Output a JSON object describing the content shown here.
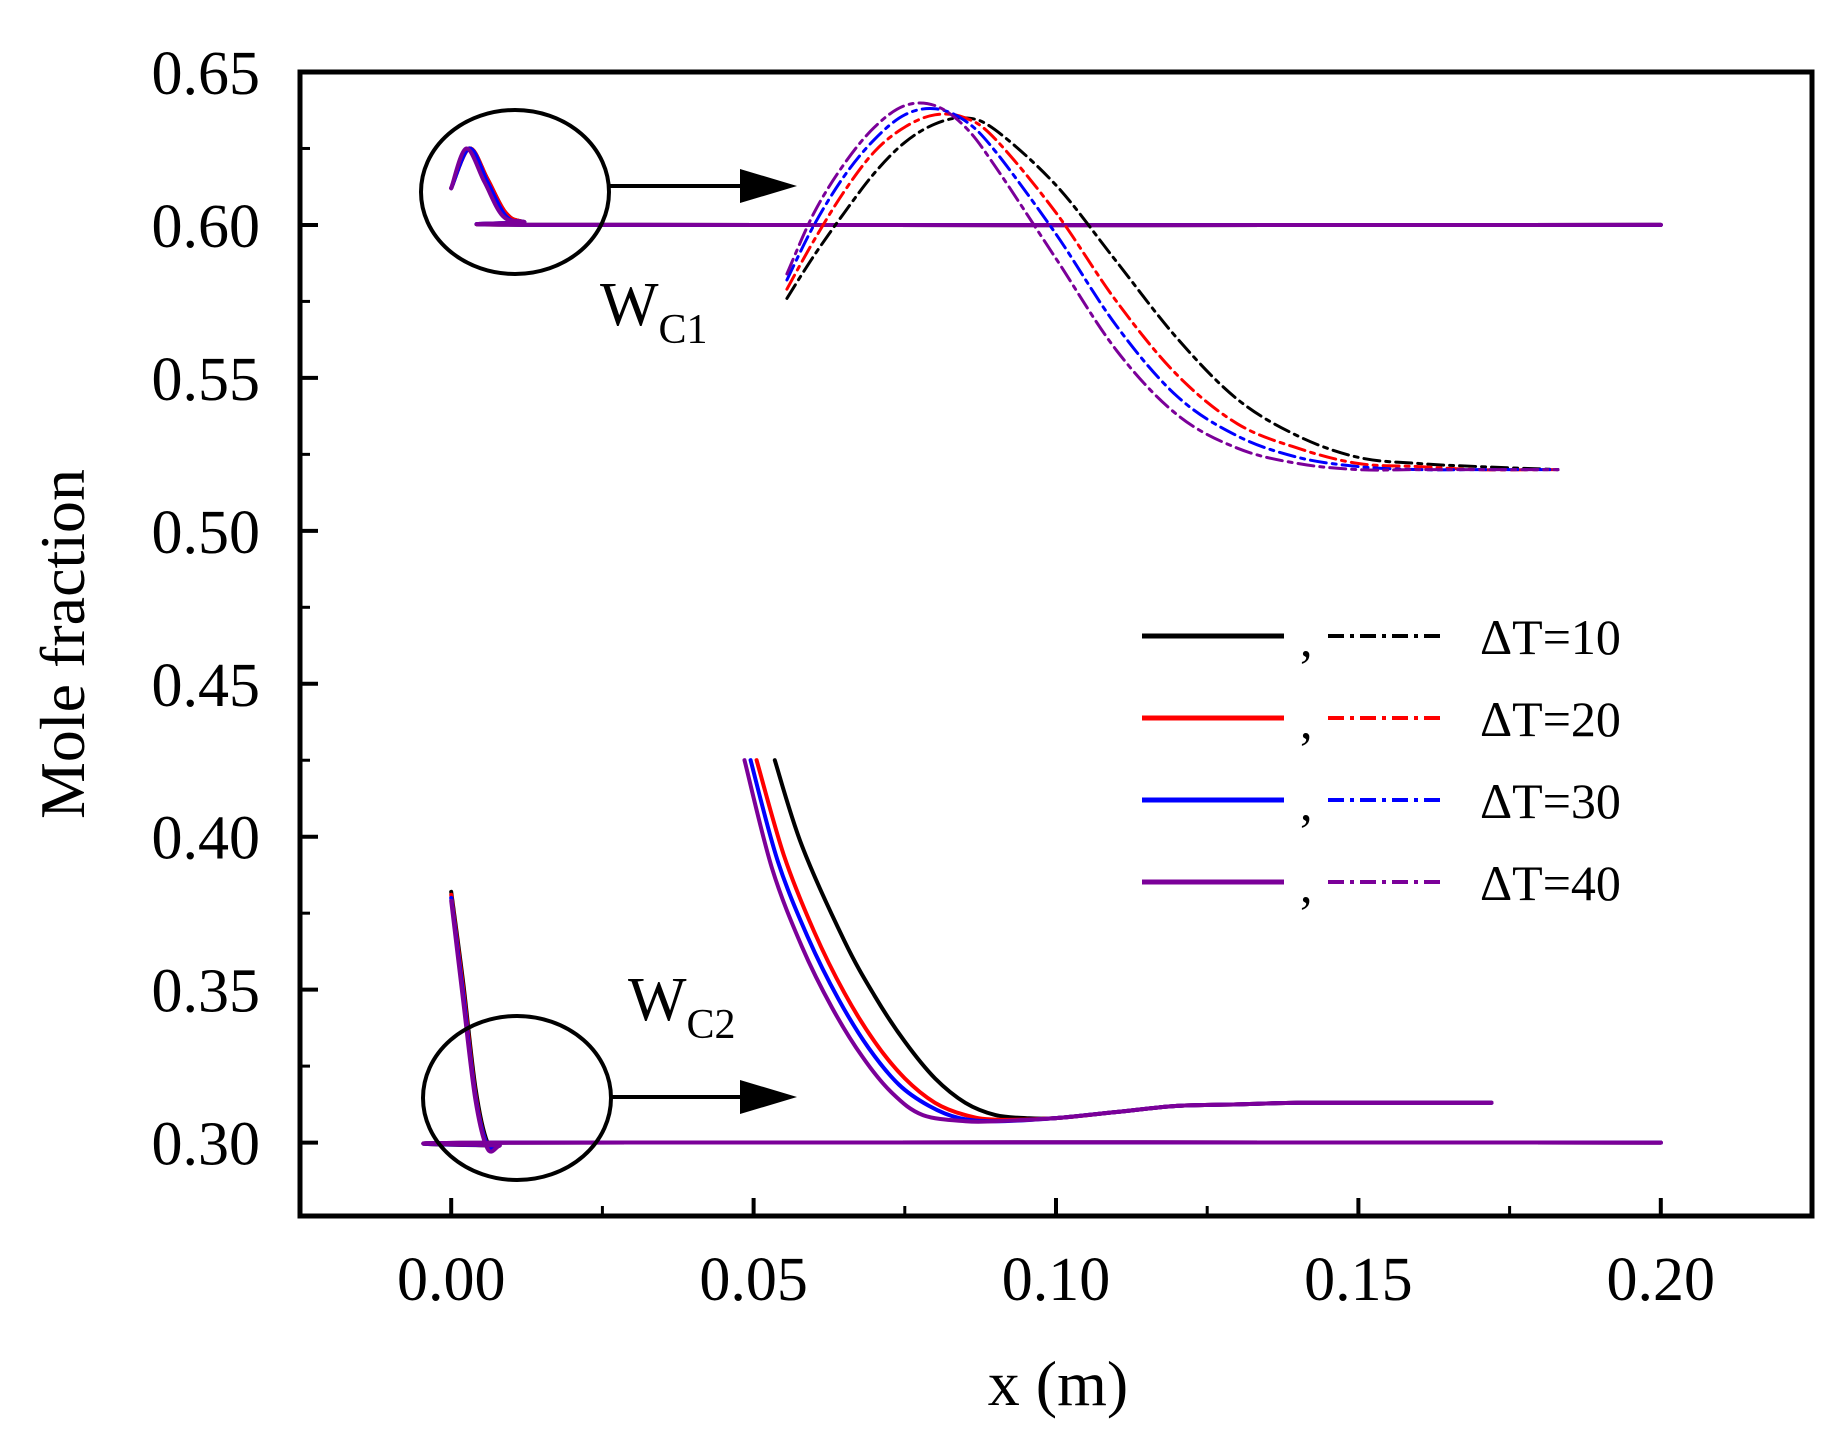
{
  "chart_data": {
    "type": "line",
    "title": "",
    "xlabel": "x (m)",
    "ylabel": "Mole fraction",
    "xlim": [
      -0.025,
      0.225
    ],
    "ylim": [
      0.276,
      0.65
    ],
    "x_ticks": [
      0.0,
      0.05,
      0.1,
      0.15,
      0.2
    ],
    "x_tick_labels": [
      "0.00",
      "0.05",
      "0.10",
      "0.15",
      "0.20"
    ],
    "y_ticks": [
      0.3,
      0.35,
      0.4,
      0.45,
      0.5,
      0.55,
      0.6,
      0.65
    ],
    "y_tick_labels": [
      "0.30",
      "0.35",
      "0.40",
      "0.45",
      "0.50",
      "0.55",
      "0.60",
      "0.65"
    ],
    "colors": {
      "dT10": "#000000",
      "dT20": "#ff0000",
      "dT30": "#0000ff",
      "dT40": "#7b0099",
      "axis": "#000000"
    },
    "legend": {
      "position": "center-right",
      "separator": ",",
      "entries": [
        {
          "label": "ΔT=10",
          "color": "#000000"
        },
        {
          "label": "ΔT=20",
          "color": "#ff0000"
        },
        {
          "label": "ΔT=30",
          "color": "#0000ff"
        },
        {
          "label": "ΔT=40",
          "color": "#7b0099"
        }
      ]
    },
    "annotations": {
      "wc1": {
        "main": "W",
        "sub": "C1"
      },
      "wc2": {
        "main": "W",
        "sub": "C2"
      }
    },
    "series": [
      {
        "name": "WC1 ΔT=10",
        "style": "solid",
        "color": "#000000",
        "x": [
          0.0,
          0.003,
          0.006,
          0.009,
          0.012,
          0.02,
          0.2
        ],
        "y": [
          0.612,
          0.625,
          0.615,
          0.604,
          0.601,
          0.6,
          0.6
        ]
      },
      {
        "name": "WC1 ΔT=20",
        "style": "solid",
        "color": "#ff0000",
        "x": [
          0.0,
          0.003,
          0.006,
          0.009,
          0.012,
          0.02,
          0.2
        ],
        "y": [
          0.612,
          0.625,
          0.615,
          0.604,
          0.601,
          0.6,
          0.6
        ]
      },
      {
        "name": "WC1 ΔT=30",
        "style": "solid",
        "color": "#0000ff",
        "x": [
          0.0,
          0.003,
          0.006,
          0.009,
          0.012,
          0.02,
          0.2
        ],
        "y": [
          0.612,
          0.625,
          0.614,
          0.603,
          0.601,
          0.6,
          0.6
        ]
      },
      {
        "name": "WC1 ΔT=40",
        "style": "solid",
        "color": "#7b0099",
        "x": [
          0.0,
          0.0025,
          0.0055,
          0.0085,
          0.012,
          0.02,
          0.2
        ],
        "y": [
          0.612,
          0.625,
          0.614,
          0.603,
          0.601,
          0.6,
          0.6
        ]
      },
      {
        "name": "WC2 ΔT=10",
        "style": "solid",
        "color": "#000000",
        "x": [
          0.0,
          0.002,
          0.004,
          0.006,
          0.008,
          0.01,
          0.2
        ],
        "y": [
          0.382,
          0.352,
          0.318,
          0.3,
          0.299,
          0.3,
          0.3
        ]
      },
      {
        "name": "WC2 ΔT=20",
        "style": "solid",
        "color": "#ff0000",
        "x": [
          0.0,
          0.002,
          0.004,
          0.006,
          0.008,
          0.01,
          0.2
        ],
        "y": [
          0.381,
          0.35,
          0.316,
          0.299,
          0.299,
          0.3,
          0.3
        ]
      },
      {
        "name": "WC2 ΔT=30",
        "style": "solid",
        "color": "#0000ff",
        "x": [
          0.0,
          0.002,
          0.004,
          0.006,
          0.008,
          0.01,
          0.2
        ],
        "y": [
          0.38,
          0.348,
          0.315,
          0.299,
          0.299,
          0.3,
          0.3
        ]
      },
      {
        "name": "WC2 ΔT=40",
        "style": "solid",
        "color": "#7b0099",
        "x": [
          0.0,
          0.002,
          0.004,
          0.006,
          0.008,
          0.01,
          0.2
        ],
        "y": [
          0.379,
          0.346,
          0.314,
          0.298,
          0.299,
          0.3,
          0.3
        ]
      },
      {
        "name": "WC1 zoom ΔT=10",
        "style": "dashdot",
        "color": "#000000",
        "x": [
          0.0555,
          0.06,
          0.065,
          0.07,
          0.075,
          0.08,
          0.085,
          0.09,
          0.1,
          0.11,
          0.12,
          0.13,
          0.14,
          0.15,
          0.16,
          0.17,
          0.183
        ],
        "y": [
          0.576,
          0.59,
          0.604,
          0.617,
          0.627,
          0.633,
          0.635,
          0.631,
          0.613,
          0.588,
          0.563,
          0.543,
          0.531,
          0.524,
          0.522,
          0.521,
          0.52
        ]
      },
      {
        "name": "WC1 zoom ΔT=20",
        "style": "dashdot",
        "color": "#ff0000",
        "x": [
          0.0555,
          0.06,
          0.065,
          0.07,
          0.075,
          0.08,
          0.085,
          0.09,
          0.1,
          0.11,
          0.12,
          0.13,
          0.14,
          0.15,
          0.16,
          0.17,
          0.183
        ],
        "y": [
          0.579,
          0.595,
          0.611,
          0.624,
          0.632,
          0.636,
          0.635,
          0.628,
          0.604,
          0.575,
          0.551,
          0.535,
          0.527,
          0.522,
          0.521,
          0.52,
          0.52
        ]
      },
      {
        "name": "WC1 zoom ΔT=30",
        "style": "dashdot",
        "color": "#0000ff",
        "x": [
          0.0555,
          0.06,
          0.065,
          0.07,
          0.075,
          0.08,
          0.085,
          0.09,
          0.1,
          0.11,
          0.12,
          0.13,
          0.14,
          0.15,
          0.16,
          0.17,
          0.183
        ],
        "y": [
          0.582,
          0.6,
          0.616,
          0.628,
          0.636,
          0.638,
          0.634,
          0.624,
          0.597,
          0.567,
          0.544,
          0.531,
          0.524,
          0.521,
          0.52,
          0.52,
          0.52
        ]
      },
      {
        "name": "WC1 zoom ΔT=40",
        "style": "dashdot",
        "color": "#7b0099",
        "x": [
          0.0555,
          0.06,
          0.065,
          0.07,
          0.075,
          0.08,
          0.085,
          0.09,
          0.1,
          0.11,
          0.12,
          0.13,
          0.14,
          0.15,
          0.16,
          0.17,
          0.183
        ],
        "y": [
          0.584,
          0.604,
          0.62,
          0.632,
          0.639,
          0.639,
          0.632,
          0.619,
          0.589,
          0.559,
          0.538,
          0.527,
          0.522,
          0.52,
          0.52,
          0.52,
          0.52
        ]
      },
      {
        "name": "WC2 zoom ΔT=10",
        "style": "solid",
        "color": "#000000",
        "x": [
          0.0535,
          0.058,
          0.065,
          0.07,
          0.075,
          0.08,
          0.085,
          0.09,
          0.095,
          0.1,
          0.11,
          0.12,
          0.13,
          0.14,
          0.15,
          0.16,
          0.172
        ],
        "y": [
          0.425,
          0.397,
          0.366,
          0.348,
          0.333,
          0.321,
          0.313,
          0.309,
          0.308,
          0.308,
          0.31,
          0.312,
          0.3125,
          0.313,
          0.313,
          0.313,
          0.313
        ]
      },
      {
        "name": "WC2 zoom ΔT=20",
        "style": "solid",
        "color": "#ff0000",
        "x": [
          0.0505,
          0.055,
          0.06,
          0.065,
          0.07,
          0.075,
          0.08,
          0.085,
          0.09,
          0.1,
          0.11,
          0.12,
          0.13,
          0.14,
          0.15,
          0.16,
          0.172
        ],
        "y": [
          0.425,
          0.394,
          0.369,
          0.349,
          0.333,
          0.321,
          0.313,
          0.309,
          0.3075,
          0.308,
          0.31,
          0.312,
          0.3125,
          0.313,
          0.313,
          0.313,
          0.313
        ]
      },
      {
        "name": "WC2 zoom ΔT=30",
        "style": "solid",
        "color": "#0000ff",
        "x": [
          0.0495,
          0.054,
          0.059,
          0.064,
          0.069,
          0.074,
          0.079,
          0.084,
          0.09,
          0.1,
          0.11,
          0.12,
          0.13,
          0.14,
          0.15,
          0.16,
          0.172
        ],
        "y": [
          0.425,
          0.392,
          0.367,
          0.347,
          0.331,
          0.319,
          0.312,
          0.308,
          0.307,
          0.308,
          0.31,
          0.312,
          0.3125,
          0.313,
          0.313,
          0.313,
          0.313
        ]
      },
      {
        "name": "WC2 zoom ΔT=40",
        "style": "solid",
        "color": "#7b0099",
        "x": [
          0.0485,
          0.053,
          0.058,
          0.063,
          0.068,
          0.073,
          0.078,
          0.085,
          0.09,
          0.1,
          0.11,
          0.12,
          0.13,
          0.14,
          0.15,
          0.16,
          0.172
        ],
        "y": [
          0.425,
          0.39,
          0.364,
          0.344,
          0.328,
          0.316,
          0.309,
          0.307,
          0.307,
          0.308,
          0.31,
          0.312,
          0.3125,
          0.313,
          0.313,
          0.313,
          0.313
        ]
      }
    ]
  }
}
